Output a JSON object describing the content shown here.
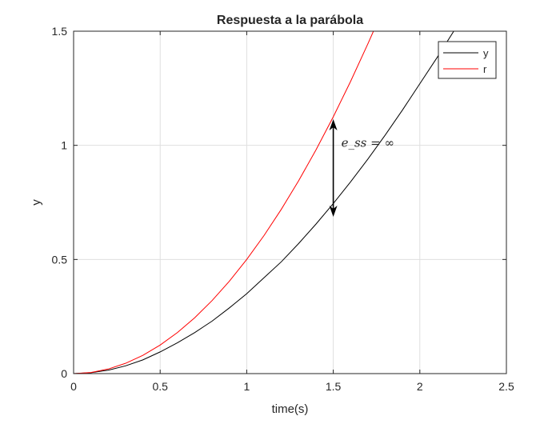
{
  "chart_data": {
    "type": "line",
    "title": "Respuesta a la parábola",
    "xlabel": "time(s)",
    "ylabel": "y",
    "xlim": [
      0,
      2.5
    ],
    "ylim": [
      0,
      1.5
    ],
    "xticks": [
      0,
      0.5,
      1,
      1.5,
      2,
      2.5
    ],
    "xtick_labels": [
      "0",
      "0.5",
      "1",
      "1.5",
      "2",
      "2.5"
    ],
    "yticks": [
      0,
      0.5,
      1,
      1.5
    ],
    "ytick_labels": [
      "0",
      "0.5",
      "1",
      "1.5"
    ],
    "grid": true,
    "legend_position": "top-right",
    "series": [
      {
        "name": "y",
        "color": "#000000",
        "x": [
          0,
          0.1,
          0.2,
          0.3,
          0.4,
          0.5,
          0.6,
          0.7,
          0.8,
          0.9,
          1.0,
          1.1,
          1.2,
          1.3,
          1.4,
          1.5,
          1.6,
          1.7,
          1.8,
          1.9,
          2.0,
          2.1,
          2.2,
          2.25
        ],
        "y": [
          0,
          0.004,
          0.015,
          0.034,
          0.06,
          0.095,
          0.135,
          0.18,
          0.23,
          0.288,
          0.35,
          0.42,
          0.49,
          0.57,
          0.655,
          0.745,
          0.84,
          0.94,
          1.045,
          1.155,
          1.27,
          1.385,
          1.505,
          1.565
        ]
      },
      {
        "name": "r",
        "color": "#ff0000",
        "x": [
          0,
          0.1,
          0.2,
          0.3,
          0.4,
          0.5,
          0.6,
          0.7,
          0.8,
          0.9,
          1.0,
          1.1,
          1.2,
          1.3,
          1.4,
          1.5,
          1.6,
          1.7,
          1.732
        ],
        "y": [
          0,
          0.005,
          0.02,
          0.045,
          0.08,
          0.125,
          0.18,
          0.245,
          0.32,
          0.405,
          0.5,
          0.605,
          0.72,
          0.845,
          0.98,
          1.125,
          1.28,
          1.445,
          1.5
        ]
      }
    ],
    "annotation": {
      "text": "e_ss = ∞",
      "x": 1.5,
      "y_top": 1.125,
      "y_bottom": 0.68
    }
  }
}
